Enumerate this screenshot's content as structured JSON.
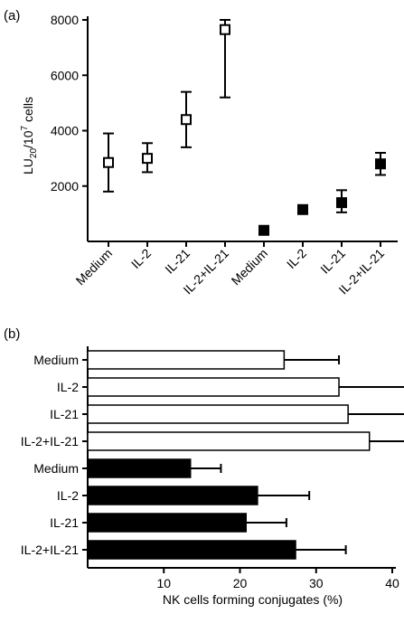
{
  "chart_data": [
    {
      "panel_label": "(a)",
      "type": "scatter",
      "title": "",
      "ylabel": "LU",
      "ylabel_sub": "20",
      "ylabel_mid": "/10",
      "ylabel_sup": "7",
      "ylabel_end": " cells",
      "xlabel": "",
      "ylim": [
        0,
        8000
      ],
      "yticks": [
        2000,
        4000,
        6000,
        8000
      ],
      "categories": [
        "Medium",
        "IL-2",
        "IL-21",
        "IL-2+IL-21",
        "Medium",
        "IL-2",
        "IL-21",
        "IL-2+IL-21"
      ],
      "values": [
        2850,
        3000,
        4400,
        7650,
        400,
        1150,
        1400,
        2800
      ],
      "err_low": [
        1800,
        2500,
        3400,
        5200,
        400,
        1000,
        1050,
        2400
      ],
      "err_high": [
        3900,
        3550,
        5400,
        8000,
        400,
        1300,
        1850,
        3200
      ],
      "marker": [
        "open",
        "open",
        "open",
        "open",
        "filled",
        "filled",
        "filled",
        "filled"
      ],
      "colors": {
        "open": "#ffffff",
        "filled": "#000000",
        "stroke": "#000000"
      },
      "grid": false
    },
    {
      "panel_label": "(b)",
      "type": "bar",
      "orientation": "horizontal",
      "title": "",
      "xlabel": "NK cells forming conjugates (%)",
      "ylabel": "",
      "xlim": [
        0,
        40
      ],
      "xticks": [
        10,
        20,
        30,
        40
      ],
      "categories": [
        "Medium",
        "IL-2",
        "IL-21",
        "IL-2+IL-21",
        "Medium",
        "IL-2",
        "IL-21",
        "IL-2+IL-21"
      ],
      "values": [
        25.8,
        33,
        34.2,
        37,
        13.5,
        22.3,
        20.8,
        27.3
      ],
      "err": [
        7.2,
        9.2,
        9.8,
        9.8,
        4.0,
        6.8,
        5.3,
        6.6
      ],
      "fill": [
        "open",
        "open",
        "open",
        "open",
        "filled",
        "filled",
        "filled",
        "filled"
      ],
      "colors": {
        "open": "#ffffff",
        "filled": "#000000",
        "stroke": "#000000"
      },
      "grid": false
    }
  ]
}
